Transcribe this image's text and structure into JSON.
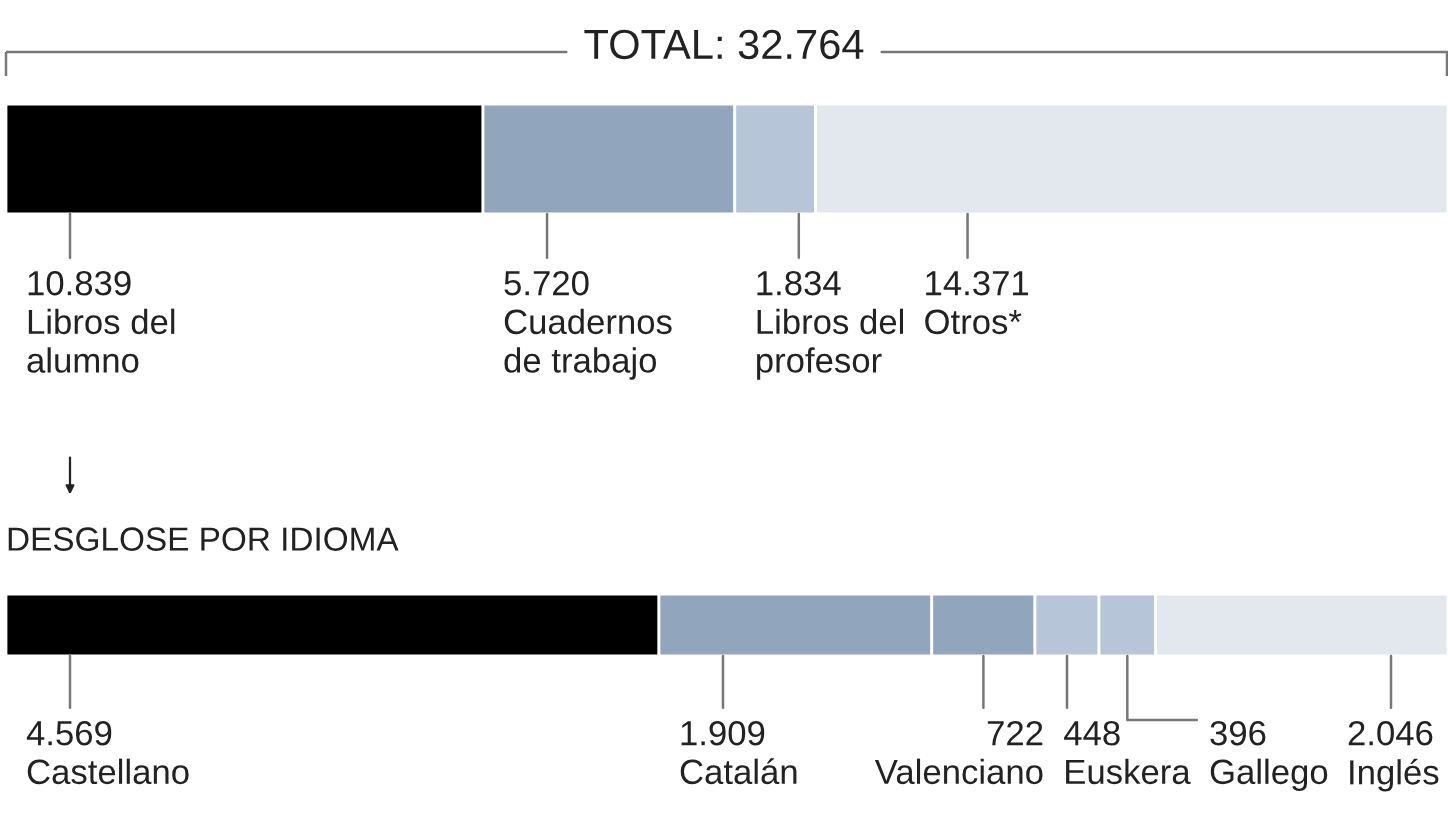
{
  "chart_data": [
    {
      "type": "bar",
      "orientation": "horizontal",
      "stacked": true,
      "title": "TOTAL: 32.764",
      "categories": [
        null
      ],
      "xlim": [
        0,
        32764
      ],
      "legend": false,
      "series": [
        {
          "name": "Libros del alumno",
          "color": "#000000",
          "values": [
            10839
          ],
          "value_labels": [
            "10.839"
          ]
        },
        {
          "name": "Cuadernos de trabajo",
          "color": "#91a5bd",
          "values": [
            5720
          ],
          "value_labels": [
            "5.720"
          ]
        },
        {
          "name": "Libros del profesor",
          "color": "#b6c5d7",
          "values": [
            1834
          ],
          "value_labels": [
            "1.834"
          ]
        },
        {
          "name": "Otros*",
          "color": "#e3e8ef",
          "values": [
            14371
          ],
          "value_labels": [
            "14.371"
          ]
        }
      ]
    },
    {
      "type": "bar",
      "orientation": "horizontal",
      "stacked": true,
      "title": "DESGLOSE POR IDIOMA",
      "categories": [
        null
      ],
      "xlim": [
        0,
        10090
      ],
      "legend": false,
      "series": [
        {
          "name": "Castellano",
          "color": "#000000",
          "values": [
            4569
          ],
          "value_labels": [
            "4.569"
          ]
        },
        {
          "name": "Catalán",
          "color": "#91a5bd",
          "values": [
            1909
          ],
          "value_labels": [
            "1.909"
          ]
        },
        {
          "name": "Valenciano",
          "color": "#91a5bd",
          "values": [
            722
          ],
          "value_labels": [
            "722"
          ]
        },
        {
          "name": "Euskera",
          "color": "#b6c5d7",
          "values": [
            448
          ],
          "value_labels": [
            "448"
          ]
        },
        {
          "name": "Gallego",
          "color": "#b6c5d7",
          "values": [
            396
          ],
          "value_labels": [
            "396"
          ]
        },
        {
          "name": "Inglés",
          "color": "#e3e8ef",
          "values": [
            2046
          ],
          "value_labels": [
            "2.046"
          ]
        }
      ]
    }
  ]
}
